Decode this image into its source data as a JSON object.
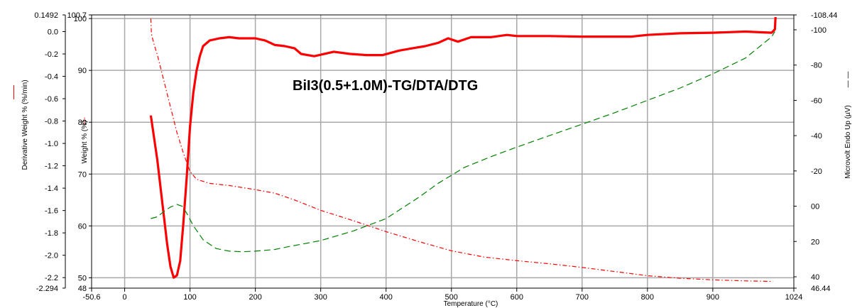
{
  "chart_data": {
    "type": "line",
    "title": "BiI3(0.5+1.0M)-TG/DTA/DTG",
    "xlabel": "Temperature (°C)",
    "xlim": [
      -50.6,
      1024
    ],
    "x_ticks": [
      "-50.6",
      "0",
      "100",
      "200",
      "300",
      "400",
      "500",
      "600",
      "700",
      "800",
      "900",
      "1024"
    ],
    "axes": {
      "deriv": {
        "label": "Derivative Weight % (%/min)",
        "legend_symbol": "——",
        "range": [
          -2.294,
          0.1492
        ],
        "ticks": [
          "0.1492",
          "0.0",
          "-0.2",
          "-0.4",
          "-0.6",
          "-0.8",
          "-1.0",
          "-1.2",
          "-1.4",
          "-1.6",
          "-1.8",
          "-2.0",
          "-2.2",
          "-2.294"
        ]
      },
      "weight": {
        "label": "Weight % (%)",
        "legend_symbol": "-·-",
        "range": [
          48,
          100.7
        ],
        "ticks": [
          "100.7",
          "100",
          "90",
          "80",
          "70",
          "60",
          "50",
          "48"
        ]
      },
      "endo": {
        "label": "Microvolt Endo Up (µV)",
        "legend_symbol": "— —",
        "range": [
          46.44,
          -108.44
        ],
        "ticks": [
          "-108.44",
          "-100",
          "-80",
          "-60",
          "-40",
          "-20",
          "00",
          "20",
          "40",
          "46.44"
        ]
      }
    },
    "grid": true,
    "series": [
      {
        "axis": "deriv",
        "color": "#ff0000",
        "style": "solid-thick",
        "points": [
          [
            40,
            -0.75
          ],
          [
            45,
            -0.95
          ],
          [
            50,
            -1.15
          ],
          [
            55,
            -1.4
          ],
          [
            60,
            -1.65
          ],
          [
            65,
            -1.9
          ],
          [
            70,
            -2.1
          ],
          [
            75,
            -2.2
          ],
          [
            80,
            -2.18
          ],
          [
            85,
            -2.05
          ],
          [
            90,
            -1.7
          ],
          [
            95,
            -1.3
          ],
          [
            100,
            -0.85
          ],
          [
            105,
            -0.55
          ],
          [
            110,
            -0.35
          ],
          [
            115,
            -0.22
          ],
          [
            120,
            -0.13
          ],
          [
            130,
            -0.08
          ],
          [
            145,
            -0.06
          ],
          [
            160,
            -0.05
          ],
          [
            175,
            -0.06
          ],
          [
            200,
            -0.06
          ],
          [
            215,
            -0.08
          ],
          [
            230,
            -0.12
          ],
          [
            245,
            -0.13
          ],
          [
            260,
            -0.15
          ],
          [
            270,
            -0.2
          ],
          [
            290,
            -0.22
          ],
          [
            320,
            -0.18
          ],
          [
            345,
            -0.2
          ],
          [
            370,
            -0.21
          ],
          [
            395,
            -0.21
          ],
          [
            420,
            -0.17
          ],
          [
            440,
            -0.15
          ],
          [
            460,
            -0.13
          ],
          [
            480,
            -0.1
          ],
          [
            495,
            -0.06
          ],
          [
            510,
            -0.09
          ],
          [
            530,
            -0.05
          ],
          [
            560,
            -0.05
          ],
          [
            585,
            -0.03
          ],
          [
            600,
            -0.04
          ],
          [
            650,
            -0.04
          ],
          [
            700,
            -0.045
          ],
          [
            750,
            -0.045
          ],
          [
            775,
            -0.045
          ],
          [
            800,
            -0.03
          ],
          [
            850,
            -0.015
          ],
          [
            900,
            -0.01
          ],
          [
            950,
            0.0
          ],
          [
            990,
            -0.01
          ],
          [
            995,
            0.02
          ],
          [
            996,
            0.13
          ]
        ]
      },
      {
        "axis": "weight",
        "color": "#ff0000",
        "style": "dash-dot",
        "points": [
          [
            40,
            100
          ],
          [
            41,
            97
          ],
          [
            45,
            95
          ],
          [
            50,
            93
          ],
          [
            60,
            88
          ],
          [
            70,
            83
          ],
          [
            80,
            78
          ],
          [
            90,
            74
          ],
          [
            100,
            70.5
          ],
          [
            110,
            69
          ],
          [
            130,
            68.2
          ],
          [
            160,
            67.8
          ],
          [
            200,
            67
          ],
          [
            230,
            66.3
          ],
          [
            260,
            65
          ],
          [
            300,
            63
          ],
          [
            350,
            61
          ],
          [
            400,
            58.9
          ],
          [
            450,
            57
          ],
          [
            500,
            55.2
          ],
          [
            550,
            54
          ],
          [
            600,
            53.3
          ],
          [
            650,
            52.7
          ],
          [
            700,
            52
          ],
          [
            750,
            51.2
          ],
          [
            800,
            50.4
          ],
          [
            850,
            49.9
          ],
          [
            900,
            49.6
          ],
          [
            950,
            49.4
          ],
          [
            992,
            49.3
          ]
        ]
      },
      {
        "axis": "endo",
        "color": "#008000",
        "style": "dashed",
        "points": [
          [
            40,
            7
          ],
          [
            50,
            6
          ],
          [
            60,
            3
          ],
          [
            70,
            0.5
          ],
          [
            80,
            -1
          ],
          [
            88,
            0
          ],
          [
            95,
            4
          ],
          [
            105,
            11
          ],
          [
            120,
            19
          ],
          [
            140,
            24
          ],
          [
            160,
            25.5
          ],
          [
            180,
            25.8
          ],
          [
            200,
            25.5
          ],
          [
            230,
            24.5
          ],
          [
            250,
            23
          ],
          [
            300,
            19.5
          ],
          [
            350,
            14
          ],
          [
            400,
            7
          ],
          [
            450,
            -5
          ],
          [
            480,
            -13
          ],
          [
            520,
            -22
          ],
          [
            560,
            -28
          ],
          [
            600,
            -33.5
          ],
          [
            650,
            -40
          ],
          [
            700,
            -46.5
          ],
          [
            750,
            -53
          ],
          [
            800,
            -60
          ],
          [
            850,
            -67
          ],
          [
            900,
            -75
          ],
          [
            950,
            -84
          ],
          [
            990,
            -96
          ],
          [
            995,
            -99
          ]
        ]
      }
    ]
  }
}
